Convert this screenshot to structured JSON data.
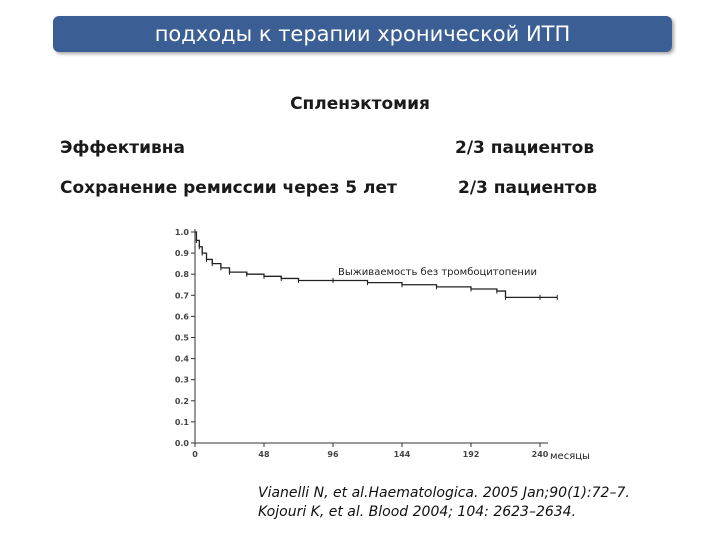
{
  "header": {
    "title": "подходы к терапии хронической ИТП"
  },
  "section_title": "Спленэктомия",
  "rows": [
    {
      "label": "Эффективна",
      "value": "2/3  пациентов"
    },
    {
      "label": "Сохранение ремиссии через 5 лет",
      "value": "2/3  пациентов"
    }
  ],
  "chart_data": {
    "type": "line",
    "annotation": "Выживаемость без тромбоцитопении",
    "xlabel": "месяцы",
    "ylabel": "",
    "xlim": [
      0,
      240
    ],
    "ylim": [
      0,
      1.0
    ],
    "x_ticks": [
      0,
      48,
      96,
      144,
      192,
      240
    ],
    "y_ticks": [
      "0.0",
      "0.1",
      "0.2",
      "0.3",
      "0.4",
      "0.5",
      "0.6",
      "0.7",
      "0.8",
      "0.9",
      "1.0"
    ],
    "series": [
      {
        "values": [
          [
            0,
            1.0
          ],
          [
            1,
            0.96
          ],
          [
            3,
            0.93
          ],
          [
            5,
            0.9
          ],
          [
            8,
            0.87
          ],
          [
            12,
            0.85
          ],
          [
            18,
            0.83
          ],
          [
            24,
            0.81
          ],
          [
            36,
            0.8
          ],
          [
            48,
            0.79
          ],
          [
            60,
            0.78
          ],
          [
            72,
            0.77
          ],
          [
            96,
            0.77
          ],
          [
            120,
            0.76
          ],
          [
            144,
            0.75
          ],
          [
            168,
            0.74
          ],
          [
            192,
            0.73
          ],
          [
            210,
            0.72
          ],
          [
            216,
            0.69
          ],
          [
            240,
            0.69
          ],
          [
            252,
            0.69
          ]
        ]
      }
    ]
  },
  "references": [
    "Vianelli N, et al.Haematologica. 2005 Jan;90(1):72–7.",
    "Kojouri K, et al. Blood 2004; 104: 2623–2634."
  ]
}
